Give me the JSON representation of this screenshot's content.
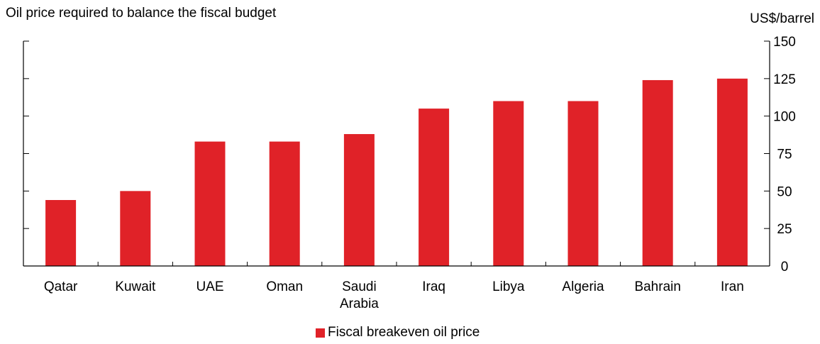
{
  "chart_data": {
    "type": "bar",
    "title": "Oil price required to balance the fiscal budget",
    "ylabel": "US$/barrel",
    "xlabel": "",
    "categories": [
      "Qatar",
      "Kuwait",
      "UAE",
      "Oman",
      "Saudi Arabia",
      "Iraq",
      "Libya",
      "Algeria",
      "Bahrain",
      "Iran"
    ],
    "category_label_lines": [
      [
        "Qatar"
      ],
      [
        "Kuwait"
      ],
      [
        "UAE"
      ],
      [
        "Oman"
      ],
      [
        "Saudi",
        "Arabia"
      ],
      [
        "Iraq"
      ],
      [
        "Libya"
      ],
      [
        "Algeria"
      ],
      [
        "Bahrain"
      ],
      [
        "Iran"
      ]
    ],
    "series": [
      {
        "name": "Fiscal breakeven oil price",
        "values": [
          44,
          50,
          83,
          83,
          88,
          105,
          110,
          110,
          124,
          125
        ]
      }
    ],
    "ylim": [
      0,
      150
    ],
    "yticks": [
      0,
      25,
      50,
      75,
      100,
      125,
      150
    ],
    "yaxis_side": "right",
    "grid": false,
    "legend_position": "bottom-center",
    "bar_color": "#e02228"
  }
}
